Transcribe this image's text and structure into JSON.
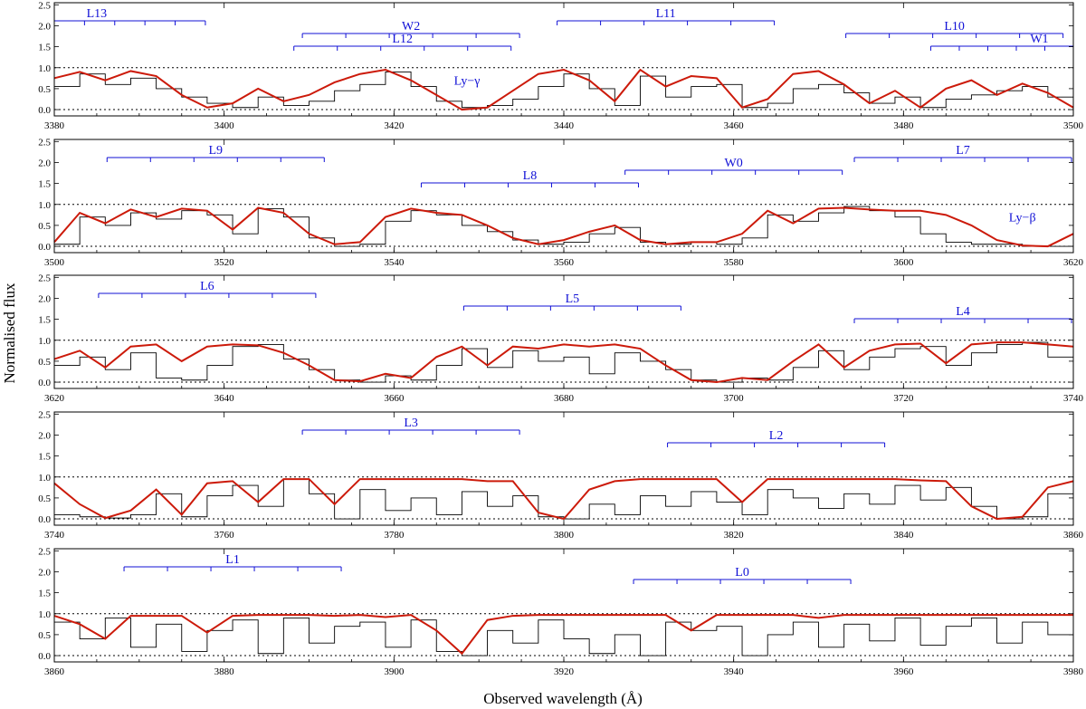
{
  "figure": {
    "ylabel": "Normalised flux",
    "xlabel": "Observed wavelength (Å)"
  },
  "colors": {
    "spectrum": "#000000",
    "model": "#cc1a0a",
    "metal_lines": "#2da62d",
    "component_markers": "#1010d6"
  },
  "chart_data": [
    {
      "type": "line",
      "xlim": [
        3380,
        3500
      ],
      "ylim": [
        -0.15,
        2.55
      ],
      "xticks": [
        3380,
        3400,
        3420,
        3440,
        3460,
        3480,
        3500
      ],
      "yticks": [
        0.0,
        0.5,
        1.0,
        1.5,
        2.0,
        2.5
      ],
      "continuum": 1.0,
      "grid": false,
      "series": [
        {
          "x": [
            3380,
            3383,
            3386,
            3389,
            3392,
            3395,
            3398,
            3401,
            3404,
            3407,
            3410,
            3413,
            3416,
            3419,
            3422,
            3425,
            3428,
            3431,
            3434,
            3437,
            3440,
            3443,
            3446,
            3449,
            3452,
            3455,
            3458,
            3461,
            3464,
            3467,
            3470,
            3473,
            3476,
            3479,
            3482,
            3485,
            3488,
            3491,
            3494,
            3497,
            3500
          ],
          "y": [
            0.55,
            0.85,
            0.6,
            0.75,
            0.5,
            0.3,
            0.15,
            0.05,
            0.3,
            0.1,
            0.2,
            0.45,
            0.6,
            0.9,
            0.55,
            0.2,
            0.05,
            0.1,
            0.25,
            0.55,
            0.85,
            0.5,
            0.1,
            0.8,
            0.3,
            0.55,
            0.6,
            0.05,
            0.15,
            0.5,
            0.6,
            0.4,
            0.15,
            0.3,
            0.05,
            0.25,
            0.35,
            0.45,
            0.55,
            0.3,
            0.1
          ]
        },
        {
          "x": [
            3380,
            3383,
            3386,
            3389,
            3392,
            3395,
            3398,
            3401,
            3404,
            3407,
            3410,
            3413,
            3416,
            3419,
            3422,
            3425,
            3428,
            3431,
            3434,
            3437,
            3440,
            3443,
            3446,
            3449,
            3452,
            3455,
            3458,
            3461,
            3464,
            3467,
            3470,
            3473,
            3476,
            3479,
            3482,
            3485,
            3488,
            3491,
            3494,
            3497,
            3500
          ],
          "y": [
            0.75,
            0.9,
            0.7,
            0.92,
            0.8,
            0.35,
            0.05,
            0.15,
            0.5,
            0.2,
            0.35,
            0.65,
            0.85,
            0.95,
            0.7,
            0.35,
            0.0,
            0.05,
            0.45,
            0.85,
            0.95,
            0.7,
            0.2,
            0.95,
            0.55,
            0.8,
            0.75,
            0.05,
            0.25,
            0.85,
            0.92,
            0.6,
            0.15,
            0.45,
            0.05,
            0.5,
            0.7,
            0.35,
            0.62,
            0.4,
            0.05
          ]
        }
      ],
      "absorption_systems": [
        {
          "name": "L13",
          "x": 3385
        },
        {
          "name": "W2",
          "x": 3422
        },
        {
          "name": "L12",
          "x": 3421
        },
        {
          "name": "L11",
          "x": 3452
        },
        {
          "name": "L10",
          "x": 3486
        },
        {
          "name": "W1",
          "x": 3496
        }
      ],
      "annotations": [
        "Ly−γ"
      ]
    },
    {
      "type": "line",
      "xlim": [
        3500,
        3620
      ],
      "ylim": [
        -0.15,
        2.55
      ],
      "xticks": [
        3500,
        3520,
        3540,
        3560,
        3580,
        3600,
        3620
      ],
      "yticks": [
        0.0,
        0.5,
        1.0,
        1.5,
        2.0,
        2.5
      ],
      "continuum": 1.0,
      "grid": false,
      "series": [
        {
          "x": [
            3500,
            3503,
            3506,
            3509,
            3512,
            3515,
            3518,
            3521,
            3524,
            3527,
            3530,
            3533,
            3536,
            3539,
            3542,
            3545,
            3548,
            3551,
            3554,
            3557,
            3560,
            3563,
            3566,
            3569,
            3572,
            3575,
            3578,
            3581,
            3584,
            3587,
            3590,
            3593,
            3596,
            3599,
            3602,
            3605,
            3608,
            3611,
            3614,
            3617,
            3620
          ],
          "y": [
            0.05,
            0.7,
            0.5,
            0.8,
            0.65,
            0.85,
            0.75,
            0.3,
            0.9,
            0.7,
            0.2,
            0.0,
            0.05,
            0.6,
            0.85,
            0.75,
            0.5,
            0.35,
            0.15,
            0.05,
            0.1,
            0.3,
            0.45,
            0.1,
            0.05,
            0.1,
            0.05,
            0.2,
            0.75,
            0.6,
            0.8,
            0.95,
            0.85,
            0.7,
            0.3,
            0.1,
            0.05,
            0.05,
            0.0,
            0.0,
            0.25
          ]
        },
        {
          "x": [
            3500,
            3503,
            3506,
            3509,
            3512,
            3515,
            3518,
            3521,
            3524,
            3527,
            3530,
            3533,
            3536,
            3539,
            3542,
            3545,
            3548,
            3551,
            3554,
            3557,
            3560,
            3563,
            3566,
            3569,
            3572,
            3575,
            3578,
            3581,
            3584,
            3587,
            3590,
            3593,
            3596,
            3599,
            3602,
            3605,
            3608,
            3611,
            3614,
            3617,
            3620
          ],
          "y": [
            0.1,
            0.8,
            0.55,
            0.88,
            0.7,
            0.9,
            0.85,
            0.4,
            0.92,
            0.8,
            0.3,
            0.05,
            0.1,
            0.7,
            0.9,
            0.8,
            0.75,
            0.5,
            0.2,
            0.05,
            0.15,
            0.35,
            0.5,
            0.15,
            0.05,
            0.1,
            0.1,
            0.3,
            0.85,
            0.55,
            0.9,
            0.92,
            0.88,
            0.85,
            0.85,
            0.75,
            0.5,
            0.15,
            0.02,
            0.0,
            0.3
          ]
        }
      ],
      "absorption_systems": [
        {
          "name": "L9",
          "x": 3519
        },
        {
          "name": "W0",
          "x": 3580
        },
        {
          "name": "L8",
          "x": 3556
        },
        {
          "name": "L7",
          "x": 3607
        }
      ],
      "annotations": [
        "Ly−β"
      ]
    },
    {
      "type": "line",
      "xlim": [
        3620,
        3740
      ],
      "ylim": [
        -0.15,
        2.55
      ],
      "xticks": [
        3620,
        3640,
        3660,
        3680,
        3700,
        3720,
        3740
      ],
      "yticks": [
        0.0,
        0.5,
        1.0,
        1.5,
        2.0,
        2.5
      ],
      "continuum": 1.0,
      "grid": false,
      "series": [
        {
          "x": [
            3620,
            3623,
            3626,
            3629,
            3632,
            3635,
            3638,
            3641,
            3644,
            3647,
            3650,
            3653,
            3656,
            3659,
            3662,
            3665,
            3668,
            3671,
            3674,
            3677,
            3680,
            3683,
            3686,
            3689,
            3692,
            3695,
            3698,
            3701,
            3704,
            3707,
            3710,
            3713,
            3716,
            3719,
            3722,
            3725,
            3728,
            3731,
            3734,
            3737,
            3740
          ],
          "y": [
            0.4,
            0.6,
            0.3,
            0.7,
            0.1,
            0.05,
            0.4,
            0.85,
            0.9,
            0.55,
            0.3,
            0.05,
            0.0,
            0.15,
            0.05,
            0.4,
            0.8,
            0.35,
            0.75,
            0.5,
            0.6,
            0.2,
            0.7,
            0.5,
            0.3,
            0.05,
            0.0,
            0.1,
            0.05,
            0.35,
            0.75,
            0.3,
            0.6,
            0.8,
            0.85,
            0.4,
            0.7,
            0.9,
            0.95,
            0.6,
            0.2
          ]
        },
        {
          "x": [
            3620,
            3623,
            3626,
            3629,
            3632,
            3635,
            3638,
            3641,
            3644,
            3647,
            3650,
            3653,
            3656,
            3659,
            3662,
            3665,
            3668,
            3671,
            3674,
            3677,
            3680,
            3683,
            3686,
            3689,
            3692,
            3695,
            3698,
            3701,
            3704,
            3707,
            3710,
            3713,
            3716,
            3719,
            3722,
            3725,
            3728,
            3731,
            3734,
            3737,
            3740
          ],
          "y": [
            0.55,
            0.75,
            0.35,
            0.85,
            0.9,
            0.5,
            0.85,
            0.9,
            0.88,
            0.7,
            0.4,
            0.05,
            0.02,
            0.2,
            0.1,
            0.6,
            0.85,
            0.4,
            0.85,
            0.8,
            0.9,
            0.85,
            0.9,
            0.8,
            0.4,
            0.05,
            0.0,
            0.1,
            0.05,
            0.5,
            0.9,
            0.35,
            0.75,
            0.9,
            0.92,
            0.45,
            0.9,
            0.95,
            0.95,
            0.9,
            0.85
          ]
        }
      ],
      "absorption_systems": [
        {
          "name": "L6",
          "x": 3638
        },
        {
          "name": "L5",
          "x": 3681
        },
        {
          "name": "L4",
          "x": 3727
        }
      ],
      "annotations": []
    },
    {
      "type": "line",
      "xlim": [
        3740,
        3860
      ],
      "ylim": [
        -0.15,
        2.55
      ],
      "xticks": [
        3740,
        3760,
        3780,
        3800,
        3820,
        3840,
        3860
      ],
      "yticks": [
        0.0,
        0.5,
        1.0,
        1.5,
        2.0,
        2.5
      ],
      "continuum": 1.0,
      "grid": false,
      "series": [
        {
          "x": [
            3740,
            3743,
            3746,
            3749,
            3752,
            3755,
            3758,
            3761,
            3764,
            3767,
            3770,
            3773,
            3776,
            3779,
            3782,
            3785,
            3788,
            3791,
            3794,
            3797,
            3800,
            3803,
            3806,
            3809,
            3812,
            3815,
            3818,
            3821,
            3824,
            3827,
            3830,
            3833,
            3836,
            3839,
            3842,
            3845,
            3848,
            3851,
            3854,
            3857,
            3860
          ],
          "y": [
            0.1,
            0.05,
            0.02,
            0.1,
            0.6,
            0.05,
            0.55,
            0.8,
            0.3,
            0.95,
            0.6,
            0.0,
            0.7,
            0.2,
            0.5,
            0.1,
            0.65,
            0.3,
            0.55,
            0.05,
            0.0,
            0.35,
            0.1,
            0.55,
            0.3,
            0.65,
            0.4,
            0.1,
            0.7,
            0.5,
            0.25,
            0.6,
            0.35,
            0.8,
            0.45,
            0.75,
            0.3,
            0.0,
            0.05,
            0.6,
            0.85
          ]
        },
        {
          "x": [
            3740,
            3743,
            3746,
            3749,
            3752,
            3755,
            3758,
            3761,
            3764,
            3767,
            3770,
            3773,
            3776,
            3779,
            3782,
            3785,
            3788,
            3791,
            3794,
            3797,
            3800,
            3803,
            3806,
            3809,
            3812,
            3815,
            3818,
            3821,
            3824,
            3827,
            3830,
            3833,
            3836,
            3839,
            3842,
            3845,
            3848,
            3851,
            3854,
            3857,
            3860
          ],
          "y": [
            0.85,
            0.35,
            0.02,
            0.2,
            0.7,
            0.1,
            0.85,
            0.9,
            0.4,
            0.95,
            0.95,
            0.35,
            0.95,
            0.95,
            0.95,
            0.95,
            0.95,
            0.9,
            0.9,
            0.15,
            0.0,
            0.7,
            0.9,
            0.95,
            0.95,
            0.95,
            0.95,
            0.4,
            0.95,
            0.95,
            0.95,
            0.95,
            0.95,
            0.95,
            0.92,
            0.9,
            0.3,
            0.0,
            0.05,
            0.75,
            0.9
          ]
        }
      ],
      "absorption_systems": [
        {
          "name": "L3",
          "x": 3782
        },
        {
          "name": "L2",
          "x": 3825
        }
      ],
      "annotations": []
    },
    {
      "type": "line",
      "xlim": [
        3860,
        3980
      ],
      "ylim": [
        -0.15,
        2.55
      ],
      "xticks": [
        3860,
        3880,
        3900,
        3920,
        3940,
        3960,
        3980
      ],
      "yticks": [
        0.0,
        0.5,
        1.0,
        1.5,
        2.0,
        2.5
      ],
      "continuum": 1.0,
      "grid": false,
      "series": [
        {
          "x": [
            3860,
            3863,
            3866,
            3869,
            3872,
            3875,
            3878,
            3881,
            3884,
            3887,
            3890,
            3893,
            3896,
            3899,
            3902,
            3905,
            3908,
            3911,
            3914,
            3917,
            3920,
            3923,
            3926,
            3929,
            3932,
            3935,
            3938,
            3941,
            3944,
            3947,
            3950,
            3953,
            3956,
            3959,
            3962,
            3965,
            3968,
            3971,
            3974,
            3977,
            3980
          ],
          "y": [
            0.8,
            0.4,
            0.9,
            0.2,
            0.75,
            0.1,
            0.6,
            0.85,
            0.05,
            0.9,
            0.3,
            0.7,
            0.8,
            0.2,
            0.85,
            0.1,
            0.0,
            0.6,
            0.3,
            0.85,
            0.4,
            0.05,
            0.5,
            0.0,
            0.8,
            0.6,
            0.7,
            0.0,
            0.5,
            0.8,
            0.2,
            0.75,
            0.35,
            0.9,
            0.25,
            0.7,
            0.9,
            0.3,
            0.8,
            0.5,
            0.9
          ]
        },
        {
          "x": [
            3860,
            3863,
            3866,
            3869,
            3872,
            3875,
            3878,
            3881,
            3884,
            3887,
            3890,
            3893,
            3896,
            3899,
            3902,
            3905,
            3908,
            3911,
            3914,
            3917,
            3920,
            3923,
            3926,
            3929,
            3932,
            3935,
            3938,
            3941,
            3944,
            3947,
            3950,
            3953,
            3956,
            3959,
            3962,
            3965,
            3968,
            3971,
            3974,
            3977,
            3980
          ],
          "y": [
            0.95,
            0.75,
            0.4,
            0.95,
            0.95,
            0.95,
            0.55,
            0.95,
            0.97,
            0.97,
            0.97,
            0.95,
            0.97,
            0.92,
            0.97,
            0.6,
            0.05,
            0.85,
            0.95,
            0.97,
            0.97,
            0.97,
            0.97,
            0.97,
            0.97,
            0.6,
            0.97,
            0.97,
            0.97,
            0.97,
            0.9,
            0.97,
            0.97,
            0.97,
            0.97,
            0.97,
            0.97,
            0.97,
            0.97,
            0.97,
            0.97
          ]
        }
      ],
      "absorption_systems": [
        {
          "name": "L1",
          "x": 3881
        },
        {
          "name": "L0",
          "x": 3941
        }
      ],
      "annotations": []
    }
  ]
}
